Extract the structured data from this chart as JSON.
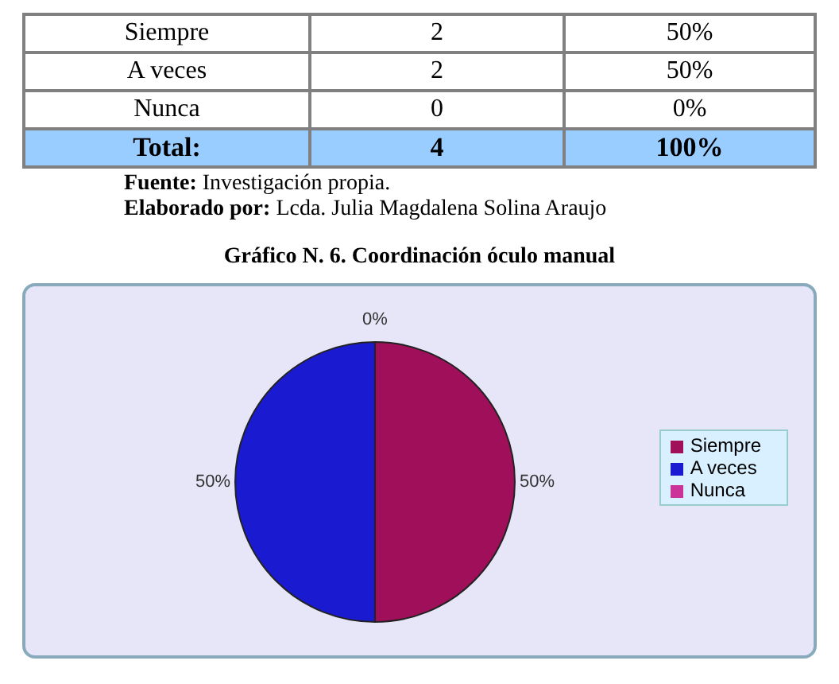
{
  "chart_data": {
    "type": "pie",
    "title": "Gráfico N. 6. Coordinación óculo manual",
    "categories": [
      "Siempre",
      "A veces",
      "Nunca"
    ],
    "values": [
      50,
      50,
      0
    ],
    "value_labels": [
      "50%",
      "50%",
      "0%"
    ],
    "colors": [
      "#a0105a",
      "#1a1ad0",
      "#cc3399"
    ],
    "legend": "right",
    "annotations": [
      "2",
      "2",
      "0",
      "Total:",
      "4",
      "100%",
      "Fuente: Investigación propia.",
      "Elaborado por: Lcda. Julia Magdalena Solina Araujo"
    ]
  }
}
